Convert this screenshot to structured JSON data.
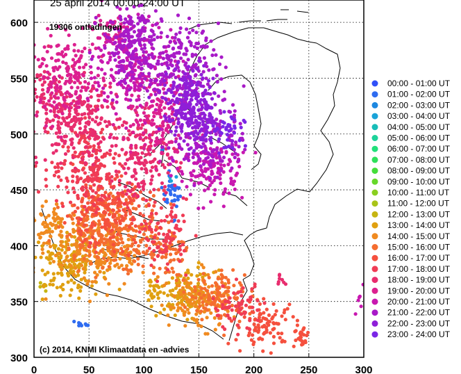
{
  "chart_data": {
    "type": "scatter",
    "title": "25 april 2014    00:00-24:00 UT",
    "count_label": "19306 ontladingen",
    "copyright": "(c) 2014, KNMI Klimaatdata en -advies",
    "xlim": [
      0,
      300
    ],
    "ylim": [
      300,
      620
    ],
    "x_ticks": [
      0,
      50,
      100,
      150,
      200,
      250,
      300
    ],
    "y_ticks": [
      300,
      350,
      400,
      450,
      500,
      550,
      600
    ],
    "grid": true,
    "legend_position": "right",
    "series": [
      {
        "name": "00:00 - 01:00 UT",
        "color": "#3050f8",
        "clusters": []
      },
      {
        "name": "01:00 - 02:00 UT",
        "color": "#2f6cf0",
        "clusters": [
          {
            "cx": 125,
            "cy": 447,
            "sx": 5,
            "sy": 6,
            "n": 30
          },
          {
            "cx": 44,
            "cy": 328,
            "sx": 6,
            "sy": 2,
            "n": 8
          },
          {
            "cx": 127,
            "cy": 422,
            "sx": 1,
            "sy": 1,
            "n": 2
          }
        ]
      },
      {
        "name": "02:00 - 03:00 UT",
        "color": "#1e88e0",
        "clusters": [
          {
            "cx": 115,
            "cy": 487,
            "sx": 2,
            "sy": 1,
            "n": 3
          }
        ]
      },
      {
        "name": "03:00 - 04:00 UT",
        "color": "#1aa3d8",
        "clusters": [
          {
            "cx": 126,
            "cy": 460,
            "sx": 3,
            "sy": 3,
            "n": 3
          }
        ]
      },
      {
        "name": "04:00 - 05:00 UT",
        "color": "#18bdb8",
        "clusters": []
      },
      {
        "name": "05:00 - 06:00 UT",
        "color": "#1dd39a",
        "clusters": []
      },
      {
        "name": "06:00 - 07:00 UT",
        "color": "#22e07a",
        "clusters": []
      },
      {
        "name": "07:00 - 08:00 UT",
        "color": "#2ee05a",
        "clusters": []
      },
      {
        "name": "08:00 - 09:00 UT",
        "color": "#44dd3a",
        "clusters": []
      },
      {
        "name": "09:00 - 10:00 UT",
        "color": "#66d82a",
        "clusters": []
      },
      {
        "name": "10:00 - 11:00 UT",
        "color": "#8acf20",
        "clusters": []
      },
      {
        "name": "11:00 - 12:00 UT",
        "color": "#a9c418",
        "clusters": []
      },
      {
        "name": "12:00 - 13:00 UT",
        "color": "#c6b512",
        "clusters": [
          {
            "cx": 8,
            "cy": 360,
            "sx": 3,
            "sy": 4,
            "n": 5
          }
        ]
      },
      {
        "name": "13:00 - 14:00 UT",
        "color": "#e0a010",
        "clusters": [
          {
            "cx": 30,
            "cy": 385,
            "sx": 15,
            "sy": 14,
            "n": 140
          },
          {
            "cx": 140,
            "cy": 357,
            "sx": 12,
            "sy": 10,
            "n": 110
          },
          {
            "cx": 108,
            "cy": 360,
            "sx": 5,
            "sy": 6,
            "n": 25
          }
        ]
      },
      {
        "name": "14:00 - 15:00 UT",
        "color": "#f08a20",
        "clusters": [
          {
            "cx": 60,
            "cy": 395,
            "sx": 22,
            "sy": 16,
            "n": 220
          },
          {
            "cx": 150,
            "cy": 350,
            "sx": 14,
            "sy": 12,
            "n": 130
          },
          {
            "cx": 15,
            "cy": 415,
            "sx": 8,
            "sy": 10,
            "n": 60
          }
        ]
      },
      {
        "name": "15:00 - 16:00 UT",
        "color": "#f56d30",
        "clusters": [
          {
            "cx": 70,
            "cy": 415,
            "sx": 22,
            "sy": 16,
            "n": 260
          },
          {
            "cx": 170,
            "cy": 355,
            "sx": 14,
            "sy": 12,
            "n": 110
          },
          {
            "cx": 120,
            "cy": 395,
            "sx": 10,
            "sy": 12,
            "n": 60
          }
        ]
      },
      {
        "name": "16:00 - 17:00 UT",
        "color": "#f5503e",
        "clusters": [
          {
            "cx": 65,
            "cy": 430,
            "sx": 20,
            "sy": 15,
            "n": 200
          },
          {
            "cx": 210,
            "cy": 330,
            "sx": 14,
            "sy": 10,
            "n": 100
          },
          {
            "cx": 245,
            "cy": 318,
            "sx": 4,
            "sy": 6,
            "n": 25
          }
        ]
      },
      {
        "name": "17:00 - 18:00 UT",
        "color": "#f03c55",
        "clusters": [
          {
            "cx": 50,
            "cy": 470,
            "sx": 18,
            "sy": 20,
            "n": 200
          },
          {
            "cx": 120,
            "cy": 410,
            "sx": 10,
            "sy": 15,
            "n": 90
          },
          {
            "cx": 185,
            "cy": 345,
            "sx": 12,
            "sy": 10,
            "n": 60
          }
        ]
      },
      {
        "name": "18:00 - 19:00 UT",
        "color": "#e82d6e",
        "clusters": [
          {
            "cx": 40,
            "cy": 510,
            "sx": 18,
            "sy": 18,
            "n": 220
          },
          {
            "cx": 100,
            "cy": 480,
            "sx": 15,
            "sy": 18,
            "n": 160
          },
          {
            "cx": 10,
            "cy": 540,
            "sx": 8,
            "sy": 15,
            "n": 60
          },
          {
            "cx": 225,
            "cy": 369,
            "sx": 3,
            "sy": 3,
            "n": 8
          }
        ]
      },
      {
        "name": "19:00 - 20:00 UT",
        "color": "#dc2090",
        "clusters": [
          {
            "cx": 30,
            "cy": 550,
            "sx": 16,
            "sy": 18,
            "n": 170
          },
          {
            "cx": 110,
            "cy": 520,
            "sx": 16,
            "sy": 18,
            "n": 150
          },
          {
            "cx": 70,
            "cy": 590,
            "sx": 10,
            "sy": 10,
            "n": 50
          }
        ]
      },
      {
        "name": "20:00 - 21:00 UT",
        "color": "#c818b0",
        "clusters": [
          {
            "cx": 90,
            "cy": 560,
            "sx": 18,
            "sy": 20,
            "n": 200
          },
          {
            "cx": 160,
            "cy": 470,
            "sx": 15,
            "sy": 15,
            "n": 150
          },
          {
            "cx": 300,
            "cy": 355,
            "sx": 5,
            "sy": 10,
            "n": 15
          }
        ]
      },
      {
        "name": "21:00 - 22:00 UT",
        "color": "#a81ac8",
        "clusters": [
          {
            "cx": 90,
            "cy": 580,
            "sx": 14,
            "sy": 18,
            "n": 200
          },
          {
            "cx": 135,
            "cy": 560,
            "sx": 16,
            "sy": 18,
            "n": 200
          },
          {
            "cx": 160,
            "cy": 500,
            "sx": 16,
            "sy": 18,
            "n": 160
          }
        ]
      },
      {
        "name": "22:00 - 23:00 UT",
        "color": "#8e1fd8",
        "clusters": [
          {
            "cx": 140,
            "cy": 530,
            "sx": 12,
            "sy": 15,
            "n": 160
          },
          {
            "cx": 150,
            "cy": 510,
            "sx": 10,
            "sy": 12,
            "n": 90
          }
        ]
      },
      {
        "name": "23:00 - 24:00 UT",
        "color": "#7a26e6",
        "clusters": [
          {
            "cx": 175,
            "cy": 500,
            "sx": 8,
            "sy": 10,
            "n": 40
          }
        ]
      }
    ]
  }
}
